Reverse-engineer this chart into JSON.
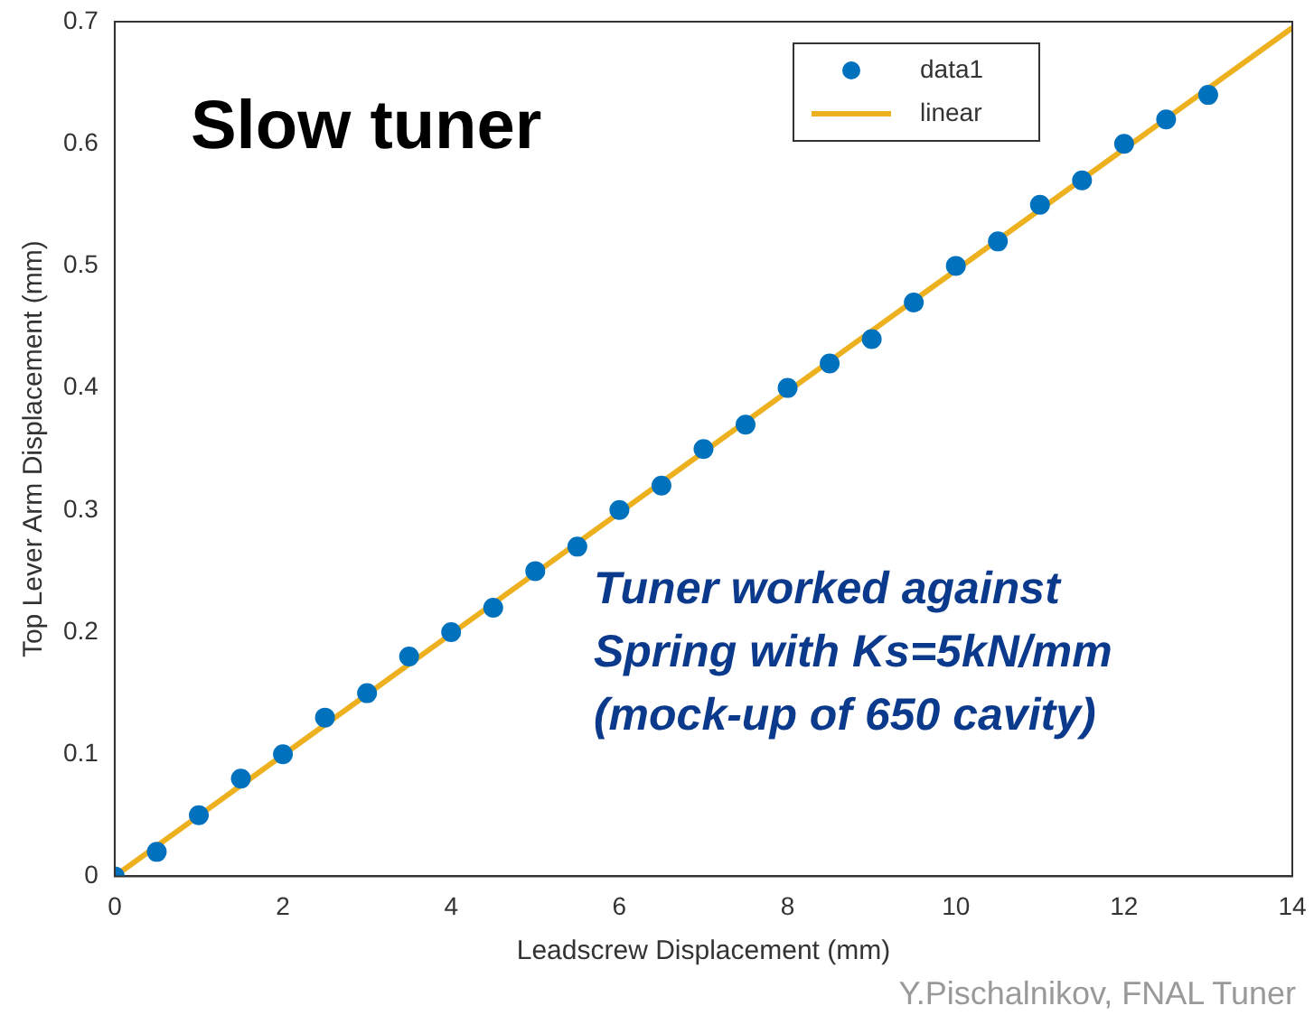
{
  "chart_data": {
    "type": "scatter",
    "xlabel": "Leadscrew Displacement (mm)",
    "ylabel": "Top Lever Arm Displacement (mm)",
    "x": [
      0,
      0.5,
      1,
      1.5,
      2,
      2.5,
      3,
      3.5,
      4,
      4.5,
      5,
      5.5,
      6,
      6.5,
      7,
      7.5,
      8,
      8.5,
      9,
      9.5,
      10,
      10.5,
      11,
      11.5,
      12,
      12.5,
      13
    ],
    "series": [
      {
        "name": "data1",
        "type": "scatter",
        "color": "#0072bd",
        "marker": "circle",
        "values": [
          0,
          0.02,
          0.05,
          0.08,
          0.1,
          0.13,
          0.15,
          0.18,
          0.2,
          0.22,
          0.25,
          0.27,
          0.3,
          0.32,
          0.35,
          0.37,
          0.4,
          0.42,
          0.44,
          0.47,
          0.5,
          0.52,
          0.55,
          0.57,
          0.6,
          0.62,
          0.64
        ]
      },
      {
        "name": "linear",
        "type": "line",
        "color": "#edb120",
        "line_style": "solid",
        "marker": "none",
        "x": [
          0,
          14
        ],
        "values": [
          0,
          0.695
        ]
      }
    ],
    "xlim": [
      0,
      14
    ],
    "xticks": [
      0,
      2,
      4,
      6,
      8,
      10,
      12,
      14
    ],
    "ylim": [
      0,
      0.7
    ],
    "yticks": [
      0,
      0.1,
      0.2,
      0.3,
      0.4,
      0.5,
      0.6,
      0.7
    ],
    "grid": false,
    "legend": "top right",
    "annotations": [
      "Slow tuner",
      "Tuner worked against",
      "Spring with Ks=5kN/mm",
      "(mock-up of 650 cavity)",
      "Y.Pischalnikov, FNAL Tuner"
    ]
  }
}
